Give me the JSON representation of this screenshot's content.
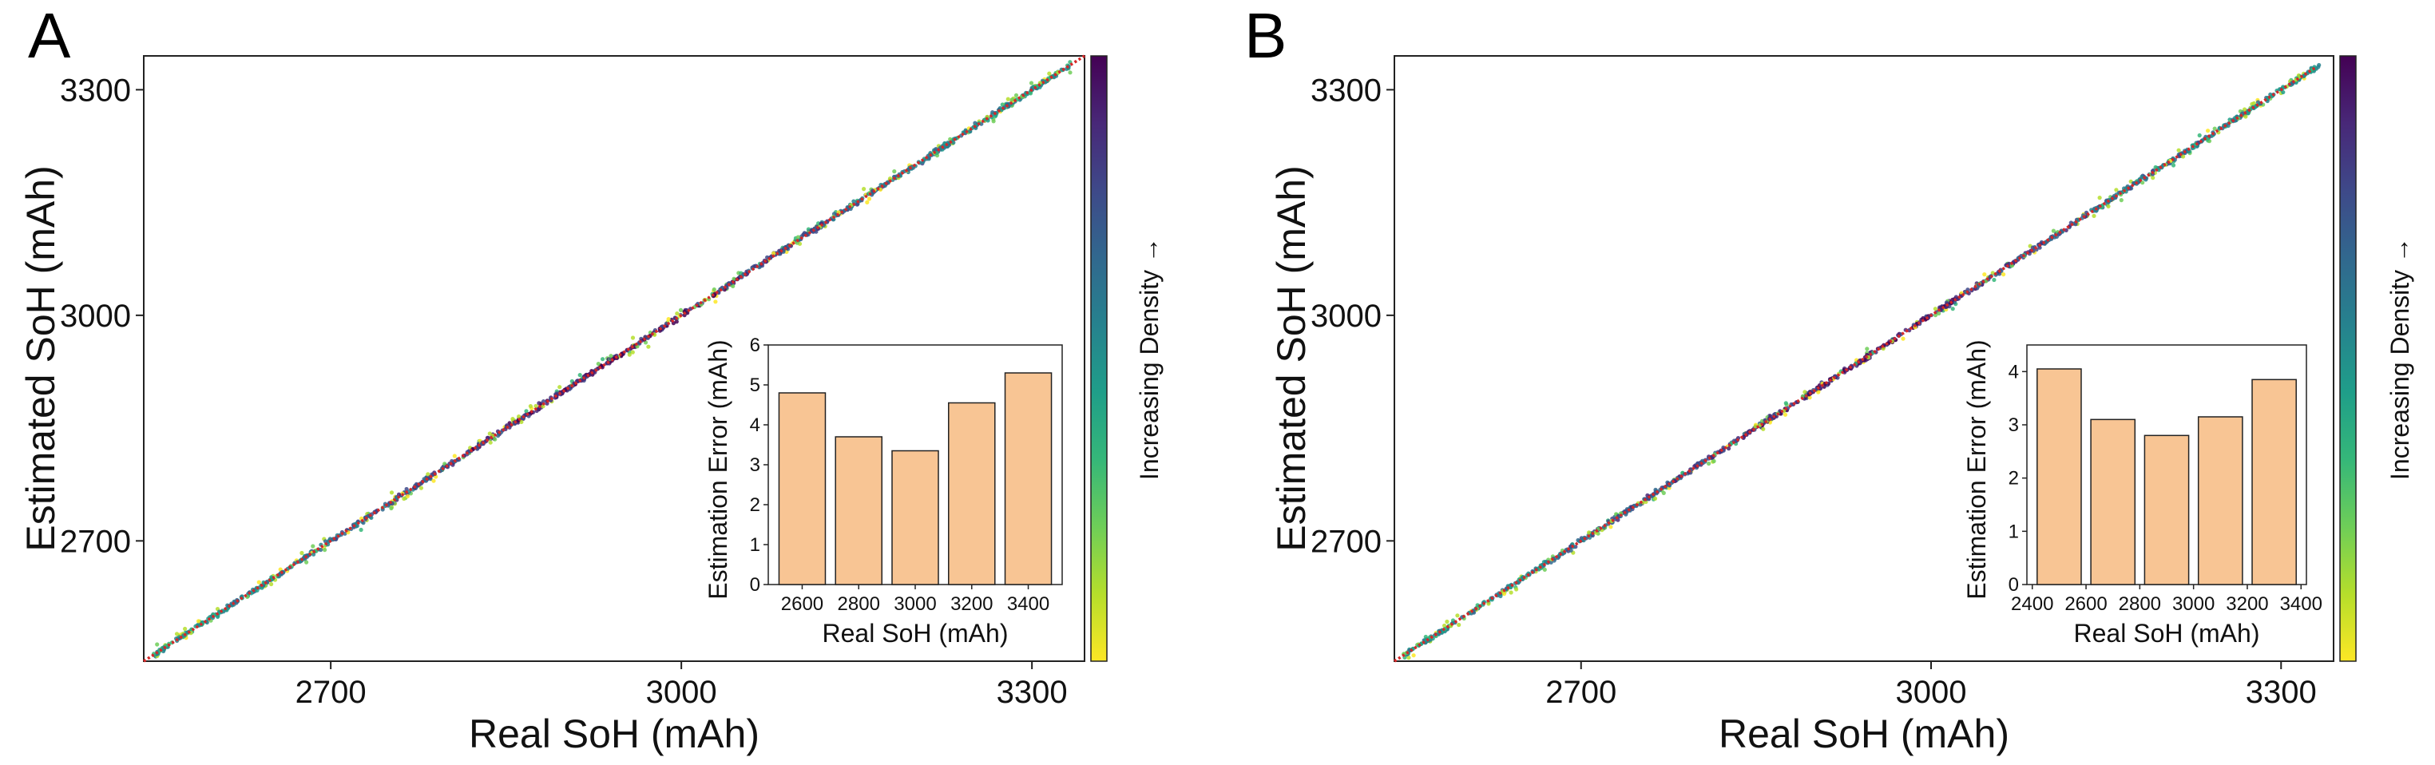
{
  "colors": {
    "fit_line": "#d62728",
    "bar_fill": "#f8c594",
    "bar_edge": "#222222",
    "viridis": [
      "#fde725",
      "#b5de2b",
      "#6ece58",
      "#35b779",
      "#1f9e89",
      "#26828e",
      "#31688e",
      "#3e4989",
      "#482878",
      "#440154"
    ]
  },
  "chart_data": [
    {
      "panel": "A",
      "type": "scatter",
      "xlabel": "Real SoH (mAh)",
      "ylabel": "Estimated SoH (mAh)",
      "xlim": [
        2540,
        3345
      ],
      "ylim": [
        2540,
        3345
      ],
      "xticks": [
        2700,
        3000,
        3300
      ],
      "yticks": [
        2700,
        3000,
        3300
      ],
      "fit_line": [
        [
          2540,
          2540
        ],
        [
          3345,
          3345
        ]
      ],
      "colorbar_label": "Increasing Density →",
      "inset": {
        "type": "bar",
        "xlabel": "Real SoH (mAh)",
        "ylabel": "Estimation Error (mAh)",
        "categories": [
          "2600",
          "2800",
          "3000",
          "3200",
          "3400"
        ],
        "values": [
          4.8,
          3.7,
          3.35,
          4.55,
          5.3
        ],
        "ylim": [
          0,
          6
        ],
        "yticks": [
          "0",
          "1",
          "2",
          "3",
          "4",
          "5",
          "6"
        ],
        "xtick_labels": [
          "2600",
          "2800",
          "3000",
          "3200",
          "3400"
        ]
      }
    },
    {
      "panel": "B",
      "type": "scatter",
      "xlabel": "Real SoH (mAh)",
      "ylabel": "Estimated SoH (mAh)",
      "xlim": [
        2540,
        3345
      ],
      "ylim": [
        2540,
        3345
      ],
      "xticks": [
        2700,
        3000,
        3300
      ],
      "yticks": [
        2700,
        3000,
        3300
      ],
      "fit_line": [
        [
          2540,
          2540
        ],
        [
          3330,
          3330
        ]
      ],
      "colorbar_label": "Increasing Density →",
      "inset": {
        "type": "bar",
        "xlabel": "Real SoH (mAh)",
        "ylabel": "Estimation Error (mAh)",
        "categories": [
          "2500",
          "2700",
          "2900",
          "3100",
          "3300"
        ],
        "values": [
          4.05,
          3.1,
          2.8,
          3.15,
          3.85
        ],
        "ylim": [
          0,
          4.5
        ],
        "yticks": [
          "0",
          "1",
          "2",
          "3",
          "4"
        ],
        "xtick_labels": [
          "2400",
          "2600",
          "2800",
          "3000",
          "3200",
          "3400"
        ]
      }
    }
  ]
}
